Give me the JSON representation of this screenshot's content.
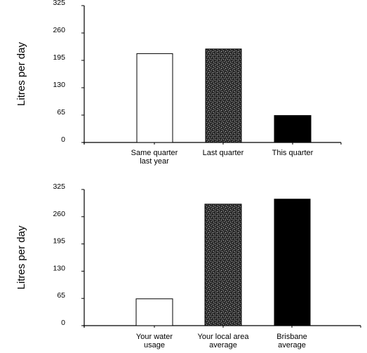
{
  "chart_data": [
    {
      "type": "bar",
      "ylabel": "Litres per day",
      "ylim": [
        0,
        325
      ],
      "yticks": [
        0,
        65,
        130,
        195,
        260,
        325
      ],
      "grid": false,
      "categories": [
        [
          "Same quarter",
          "last year"
        ],
        [
          "Last quarter"
        ],
        [
          "This quarter"
        ]
      ],
      "values": [
        211,
        222,
        64
      ],
      "bar_fills": [
        "white",
        "speckled-gray",
        "black"
      ]
    },
    {
      "type": "bar",
      "ylabel": "Litres per day",
      "ylim": [
        0,
        325
      ],
      "yticks": [
        0,
        65,
        130,
        195,
        260,
        325
      ],
      "grid": false,
      "categories": [
        [
          "Your water",
          "usage"
        ],
        [
          "Your local area",
          "average"
        ],
        [
          "Brisbane",
          "average"
        ]
      ],
      "values": [
        64,
        290,
        302
      ],
      "bar_fills": [
        "white",
        "speckled-gray",
        "black"
      ]
    }
  ]
}
